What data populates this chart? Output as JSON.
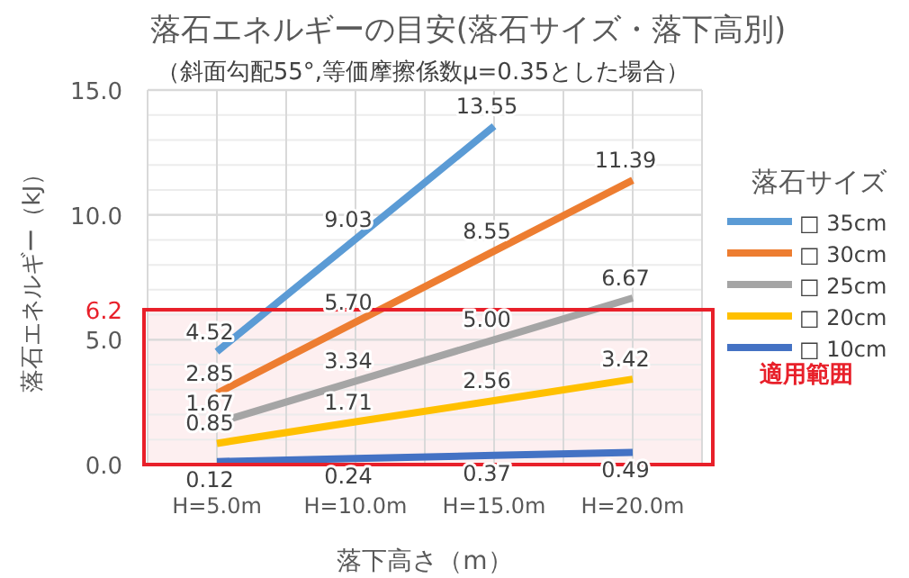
{
  "chart_data": {
    "type": "line",
    "title": "落石エネルギーの目安(落石サイズ・落下高別)",
    "subtitle": "（斜面勾配55°,等価摩擦係数μ=0.35とした場合）",
    "xlabel": "落下高さ（m）",
    "ylabel": "落石エネルギー（kJ）",
    "legend_title": "落石サイズ",
    "categories": [
      "H=5.0m",
      "H=10.0m",
      "H=15.0m",
      "H=20.0m"
    ],
    "series": [
      {
        "name": "□ 35cm",
        "color": "#5b9bd5",
        "values": [
          4.52,
          9.03,
          13.55,
          null
        ],
        "value_labels": [
          "4.52",
          "9.03",
          "13.55",
          null
        ]
      },
      {
        "name": "□ 30cm",
        "color": "#ed7d31",
        "values": [
          2.85,
          5.7,
          8.55,
          11.39
        ],
        "value_labels": [
          "2.85",
          "5.70",
          "8.55",
          "11.39"
        ]
      },
      {
        "name": "□ 25cm",
        "color": "#a5a5a5",
        "values": [
          1.67,
          3.34,
          5.0,
          6.67
        ],
        "value_labels": [
          "1.67",
          "3.34",
          "5.00",
          "6.67"
        ]
      },
      {
        "name": "□ 20cm",
        "color": "#ffc000",
        "values": [
          0.85,
          1.71,
          2.56,
          3.42
        ],
        "value_labels": [
          "0.85",
          "1.71",
          "2.56",
          "3.42"
        ]
      },
      {
        "name": "□ 10cm",
        "color": "#4472c4",
        "values": [
          0.12,
          0.24,
          0.37,
          0.49
        ],
        "value_labels": [
          "0.12",
          "0.24",
          "0.37",
          "0.49"
        ]
      }
    ],
    "ylim": [
      0,
      15
    ],
    "yticks": [
      {
        "value": 0,
        "label": "0.0"
      },
      {
        "value": 5,
        "label": "5.0"
      },
      {
        "value": 10,
        "label": "10.0"
      },
      {
        "value": 15,
        "label": "15.0"
      }
    ],
    "grid": true,
    "legend": "right",
    "marker": "none",
    "ref_lines": [
      {
        "axis": "y",
        "value": 6.2,
        "label": "6.2",
        "color": "#e8202a"
      }
    ],
    "bands": [
      {
        "axis": "y",
        "from": 0,
        "to": 6.2,
        "label": "適用範囲",
        "color": "#e8202a"
      }
    ]
  }
}
